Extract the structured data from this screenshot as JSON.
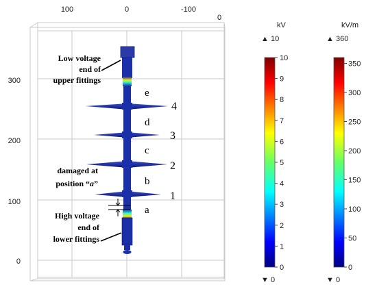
{
  "plot_axes": {
    "top_ticks": [
      "100",
      "0",
      "-100",
      "0"
    ],
    "left_ticks": [
      "300",
      "200",
      "100",
      "0"
    ]
  },
  "annotations": {
    "upper_lines": [
      "Low voltage",
      "end of",
      "upper fittings"
    ],
    "lower_lines": [
      "High voltage",
      "end of",
      "lower fittings"
    ],
    "damaged_line1": "damaged at",
    "damaged_line2_prefix": "position “",
    "damaged_line2_italic": "a",
    "damaged_line2_suffix": "”",
    "sections": [
      "e",
      "d",
      "c",
      "b",
      "a"
    ],
    "sheds": [
      "4",
      "3",
      "2",
      "1"
    ]
  },
  "colorbar_voltage": {
    "unit": "kV",
    "max_label": "10",
    "min_label": "0",
    "ticks": [
      "10",
      "9",
      "8",
      "7",
      "6",
      "5",
      "4",
      "3",
      "2",
      "1",
      "0"
    ]
  },
  "colorbar_field": {
    "unit": "kV/m",
    "max_label": "360",
    "min_label": "0",
    "ticks": [
      "350",
      "300",
      "250",
      "200",
      "150",
      "100",
      "50",
      "0"
    ]
  },
  "colors": {
    "frame": "#c9c9c9",
    "insulator_blue": "#1b2fa8",
    "insulator_dark": "#0b1670",
    "annotation": "#000000"
  }
}
